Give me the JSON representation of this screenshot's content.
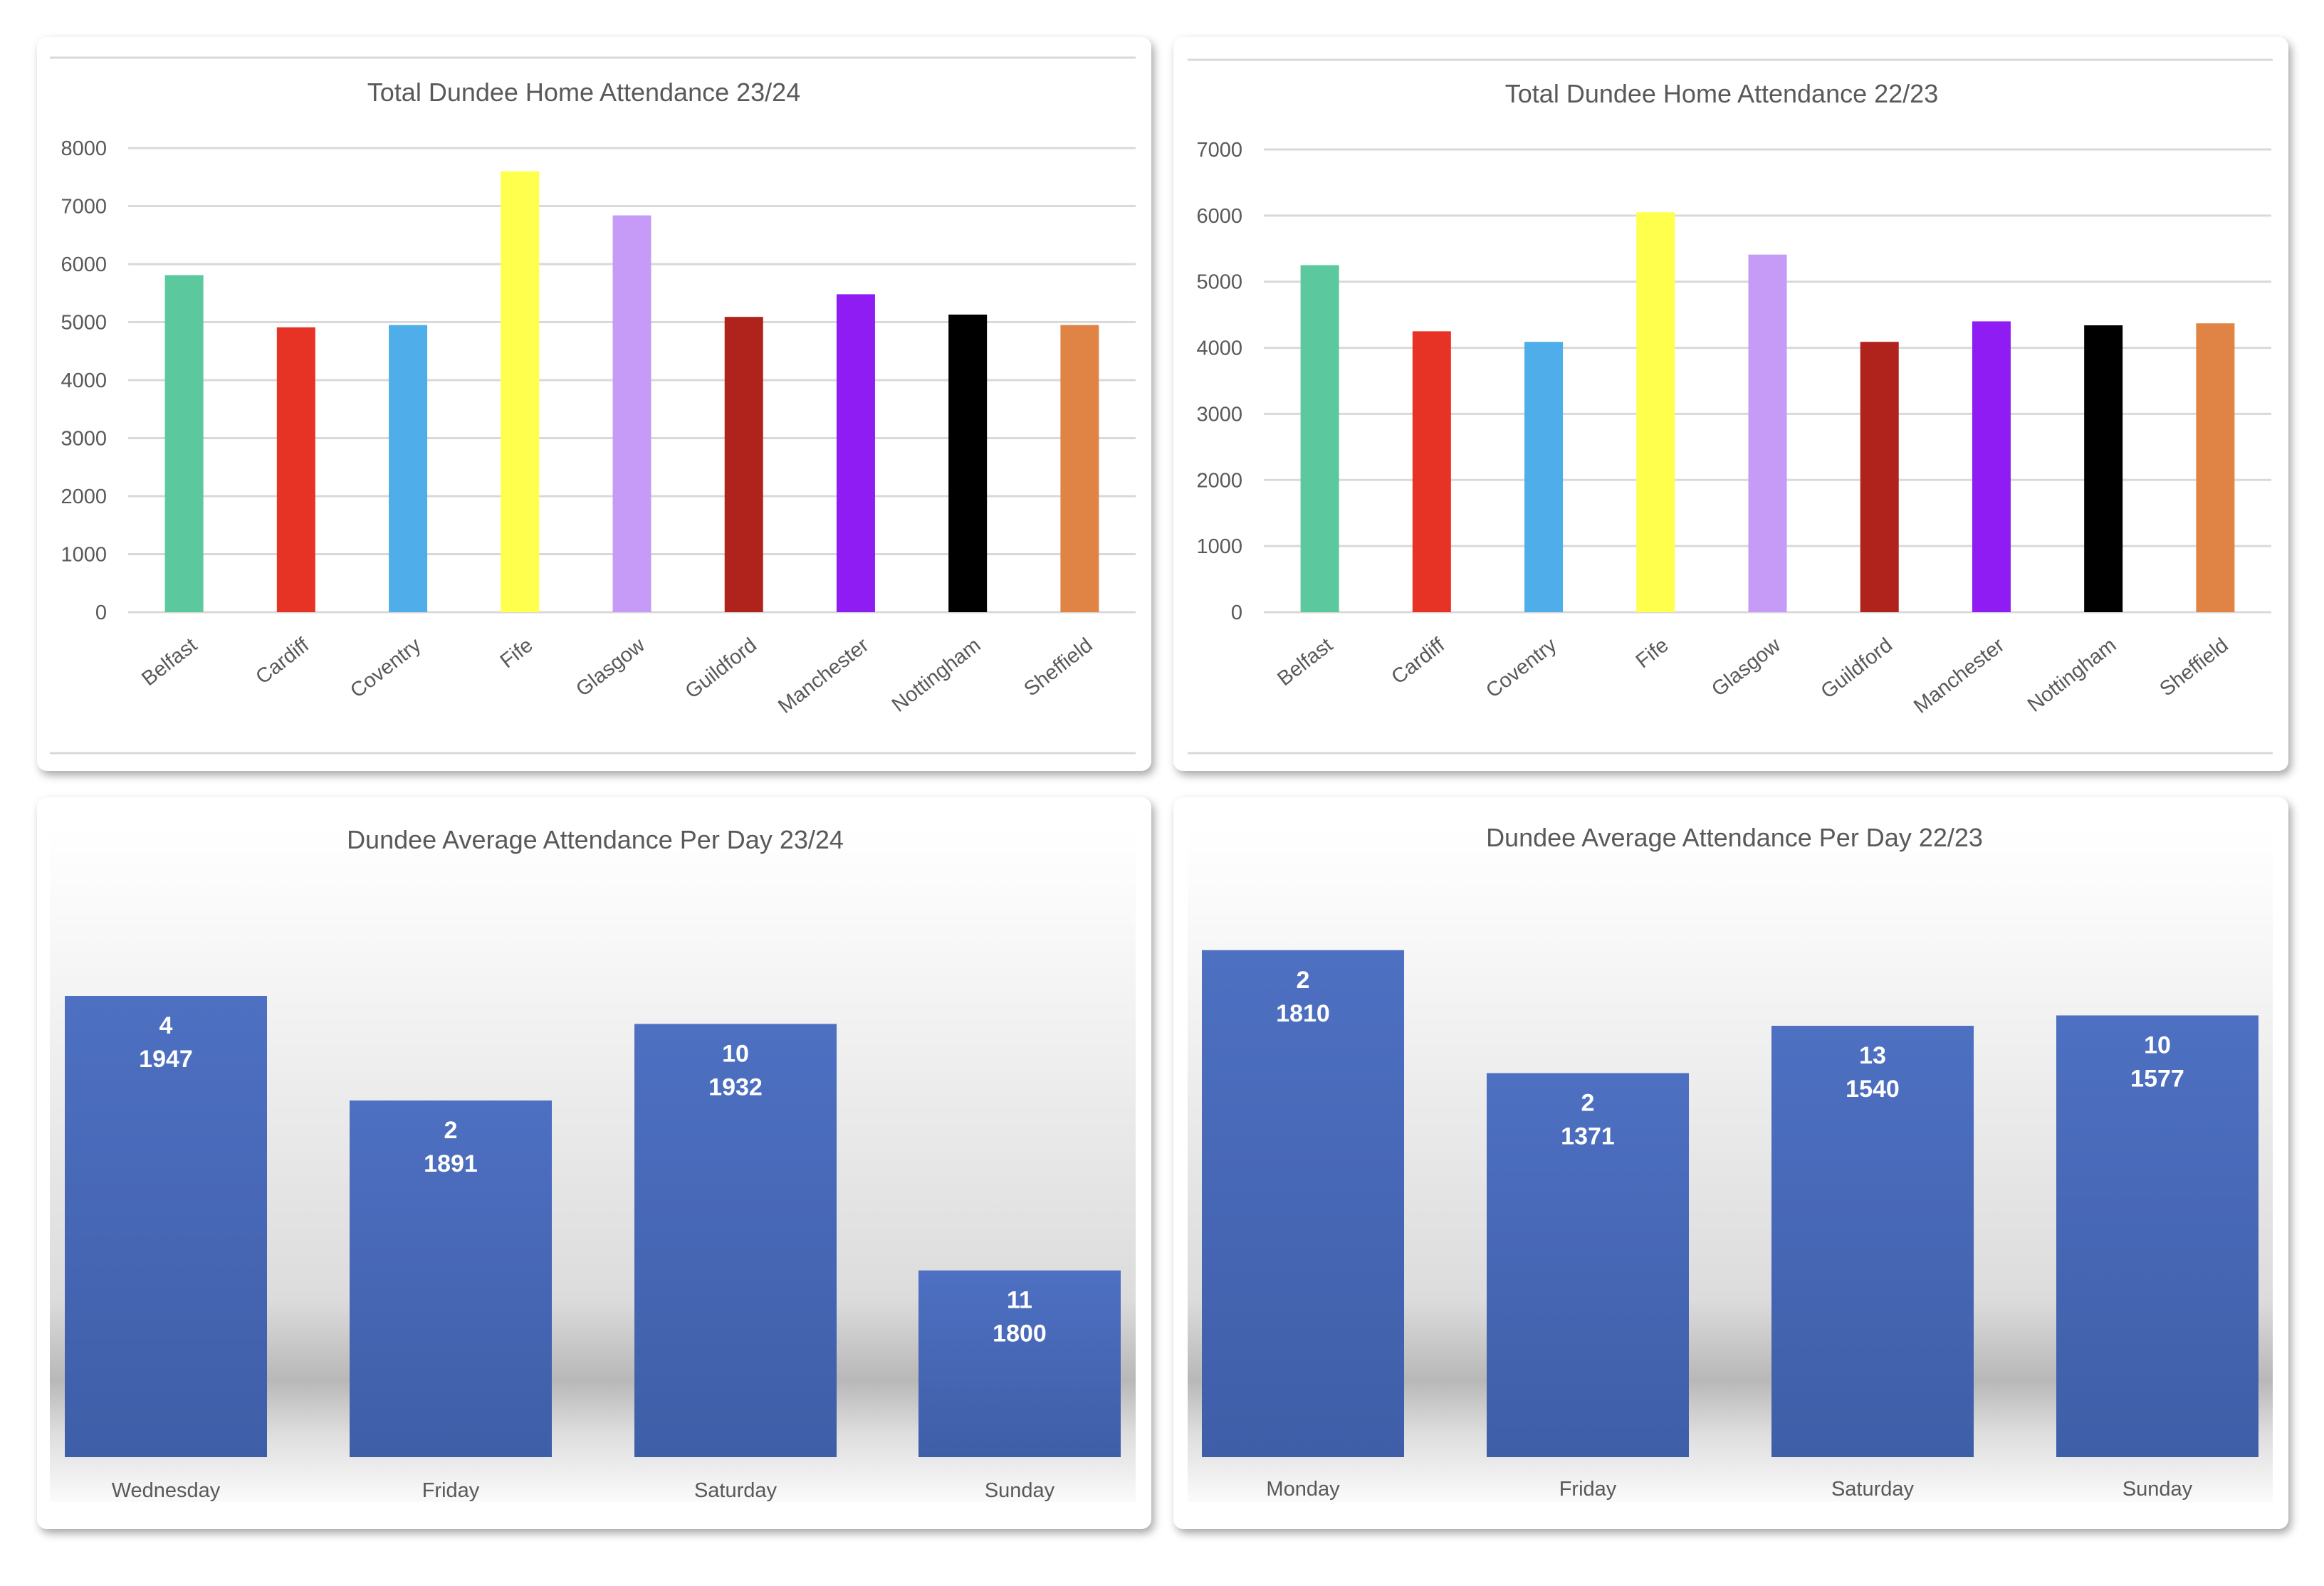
{
  "chart_data": [
    {
      "type": "bar",
      "title": "Total Dundee Home Attendance 23/24",
      "xlabel": "",
      "ylabel": "",
      "categories": [
        "Belfast",
        "Cardiff",
        "Coventry",
        "Fife",
        "Glasgow",
        "Guildford",
        "Manchester",
        "Nottingham",
        "Sheffield"
      ],
      "values": [
        5810,
        4910,
        4950,
        7600,
        6840,
        5090,
        5480,
        5130,
        4950
      ],
      "colors": [
        "#5BC89E",
        "#E63325",
        "#4FAEE9",
        "#FFFF4D",
        "#C59BF7",
        "#B0221C",
        "#8F1CF2",
        "#000000",
        "#E08446"
      ],
      "ylim": [
        0,
        8000
      ],
      "yticks": [
        "0",
        "1000",
        "2000",
        "3000",
        "4000",
        "5000",
        "6000",
        "7000",
        "8000"
      ],
      "grid": true,
      "legend": "none"
    },
    {
      "type": "bar",
      "title": "Total Dundee Home Attendance 22/23",
      "xlabel": "",
      "ylabel": "",
      "categories": [
        "Belfast",
        "Cardiff",
        "Coventry",
        "Fife",
        "Glasgow",
        "Guildford",
        "Manchester",
        "Nottingham",
        "Sheffield"
      ],
      "values": [
        5250,
        4250,
        4090,
        6050,
        5410,
        4090,
        4400,
        4340,
        4370
      ],
      "colors": [
        "#5BC89E",
        "#E63325",
        "#4FAEE9",
        "#FFFF4D",
        "#C59BF7",
        "#B0221C",
        "#8F1CF2",
        "#000000",
        "#E08446"
      ],
      "ylim": [
        0,
        7000
      ],
      "yticks": [
        "0",
        "1000",
        "2000",
        "3000",
        "4000",
        "5000",
        "6000",
        "7000"
      ],
      "grid": true,
      "legend": "none"
    },
    {
      "type": "bar",
      "title": "Dundee Average Attendance Per Day 23/24",
      "categories": [
        "Wednesday",
        "Friday",
        "Saturday",
        "Sunday"
      ],
      "games": [
        "4",
        "2",
        "10",
        "11"
      ],
      "values": [
        1947,
        1891,
        1932,
        1800
      ],
      "value_labels": [
        "1947",
        "1891",
        "1932",
        "1800"
      ],
      "color": "#4A6CC0",
      "ylim": [
        1700,
        2000
      ],
      "grid": false,
      "legend": "none"
    },
    {
      "type": "bar",
      "title": "Dundee Average Attendance Per Day 22/23",
      "categories": [
        "Monday",
        "Friday",
        "Saturday",
        "Sunday"
      ],
      "games": [
        "2",
        "2",
        "13",
        "10"
      ],
      "values": [
        1810,
        1371,
        1540,
        1577
      ],
      "value_labels": [
        "1810",
        "1371",
        "1540",
        "1577"
      ],
      "color": "#4A6CC0",
      "ylim": [
        0,
        2000
      ],
      "grid": false,
      "legend": "none"
    }
  ]
}
